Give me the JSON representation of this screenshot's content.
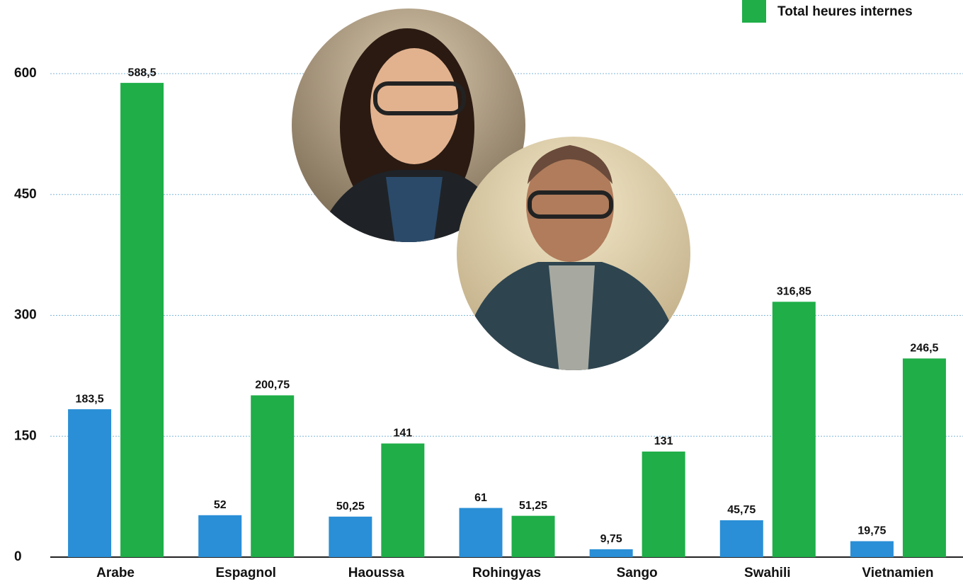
{
  "chart_data": {
    "type": "bar",
    "categories": [
      "Arabe",
      "Espagnol",
      "Haoussa",
      "Rohingyas",
      "Sango",
      "Swahili",
      "Vietnamien"
    ],
    "series": [
      {
        "color": "#2a8fd6",
        "values": [
          183.5,
          52,
          50.25,
          61,
          9.75,
          45.75,
          19.75
        ],
        "value_labels": [
          "183,5",
          "52",
          "50,25",
          "61",
          "9,75",
          "45,75",
          "19,75"
        ]
      },
      {
        "name": "Total heures internes",
        "color": "#1fae48",
        "values": [
          588.5,
          200.75,
          141,
          51.25,
          131,
          316.85,
          246.5
        ],
        "value_labels": [
          "588,5",
          "200,75",
          "141",
          "51,25",
          "131",
          "316,85",
          "246,5"
        ]
      }
    ],
    "ylim": [
      0,
      600
    ],
    "yticks": [
      0,
      150,
      300,
      450,
      600
    ],
    "grid": true,
    "legend": "top-right"
  }
}
